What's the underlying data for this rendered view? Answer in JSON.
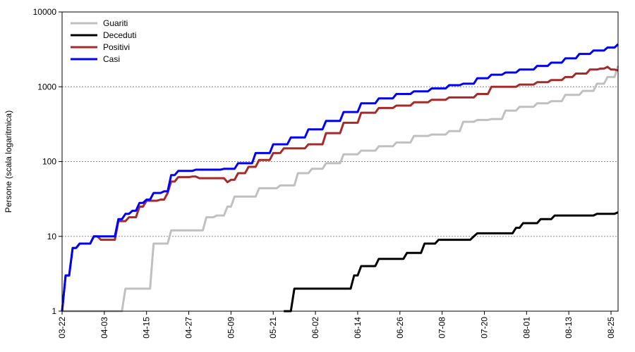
{
  "chart_data": {
    "type": "line",
    "title": "",
    "ylabel": "Persone (scala logaritmica)",
    "xlabel": "",
    "yscale": "log",
    "ylim": [
      1,
      10000
    ],
    "y_ticks": [
      "1",
      "10",
      "100",
      "1000",
      "10000"
    ],
    "x_ticks": [
      "03-22",
      "04-03",
      "04-15",
      "04-27",
      "05-09",
      "05-21",
      "06-02",
      "06-14",
      "06-26",
      "07-08",
      "07-20",
      "08-01",
      "08-13",
      "08-25"
    ],
    "x_range_days": [
      0,
      158
    ],
    "grid": "horizontal dotted",
    "legend_position": "top-left",
    "series": [
      {
        "name": "Guariti",
        "color": "#c0c0c0",
        "points": [
          [
            0,
            1
          ],
          [
            17,
            1
          ],
          [
            18,
            2
          ],
          [
            25,
            2
          ],
          [
            26,
            8
          ],
          [
            29,
            8
          ],
          [
            31,
            12
          ],
          [
            40,
            12
          ],
          [
            41,
            18
          ],
          [
            44,
            19
          ],
          [
            47,
            25
          ],
          [
            49,
            34
          ],
          [
            55,
            34
          ],
          [
            56,
            44
          ],
          [
            61,
            44
          ],
          [
            62,
            48
          ],
          [
            66,
            48
          ],
          [
            67,
            70
          ],
          [
            71,
            80
          ],
          [
            75,
            95
          ],
          [
            80,
            125
          ],
          [
            85,
            140
          ],
          [
            90,
            160
          ],
          [
            95,
            180
          ],
          [
            100,
            220
          ],
          [
            105,
            230
          ],
          [
            110,
            255
          ],
          [
            114,
            340
          ],
          [
            118,
            360
          ],
          [
            122,
            370
          ],
          [
            126,
            480
          ],
          [
            130,
            540
          ],
          [
            135,
            600
          ],
          [
            139,
            640
          ],
          [
            143,
            780
          ],
          [
            148,
            880
          ],
          [
            152,
            1100
          ],
          [
            155,
            1350
          ],
          [
            158,
            1900
          ]
        ]
      },
      {
        "name": "Deceduti",
        "color": "#000000",
        "points": [
          [
            63,
            1
          ],
          [
            65,
            1
          ],
          [
            66,
            2
          ],
          [
            82,
            2
          ],
          [
            83,
            3
          ],
          [
            84,
            3
          ],
          [
            85,
            4
          ],
          [
            89,
            4
          ],
          [
            90,
            5
          ],
          [
            97,
            5
          ],
          [
            98,
            6
          ],
          [
            102,
            6
          ],
          [
            103,
            8
          ],
          [
            106,
            8
          ],
          [
            107,
            9
          ],
          [
            116,
            9
          ],
          [
            117,
            10
          ],
          [
            118,
            11
          ],
          [
            128,
            11
          ],
          [
            129,
            13
          ],
          [
            131,
            15
          ],
          [
            135,
            15
          ],
          [
            136,
            17
          ],
          [
            140,
            19
          ],
          [
            151,
            19
          ],
          [
            152,
            20
          ],
          [
            156,
            20
          ],
          [
            158,
            21
          ]
        ]
      },
      {
        "name": "Positivi",
        "color": "#a52a2a",
        "points": [
          [
            0,
            1
          ],
          [
            1,
            3
          ],
          [
            3,
            7
          ],
          [
            5,
            8
          ],
          [
            8,
            8
          ],
          [
            9,
            10
          ],
          [
            11,
            9
          ],
          [
            15,
            9
          ],
          [
            16,
            16
          ],
          [
            19,
            18
          ],
          [
            22,
            25
          ],
          [
            24,
            30
          ],
          [
            28,
            31
          ],
          [
            30,
            38
          ],
          [
            31,
            54
          ],
          [
            33,
            62
          ],
          [
            37,
            63
          ],
          [
            39,
            60
          ],
          [
            44,
            60
          ],
          [
            47,
            53
          ],
          [
            48,
            57
          ],
          [
            50,
            70
          ],
          [
            53,
            85
          ],
          [
            56,
            105
          ],
          [
            60,
            130
          ],
          [
            63,
            150
          ],
          [
            66,
            150
          ],
          [
            70,
            170
          ],
          [
            75,
            240
          ],
          [
            80,
            330
          ],
          [
            85,
            450
          ],
          [
            90,
            520
          ],
          [
            95,
            560
          ],
          [
            100,
            620
          ],
          [
            105,
            670
          ],
          [
            110,
            720
          ],
          [
            114,
            720
          ],
          [
            118,
            800
          ],
          [
            122,
            1000
          ],
          [
            126,
            1000
          ],
          [
            130,
            1070
          ],
          [
            135,
            1150
          ],
          [
            139,
            1230
          ],
          [
            143,
            1350
          ],
          [
            146,
            1500
          ],
          [
            150,
            1700
          ],
          [
            153,
            1750
          ],
          [
            155,
            1850
          ],
          [
            156,
            1700
          ],
          [
            158,
            1650
          ]
        ]
      },
      {
        "name": "Casi",
        "color": "#0000ff",
        "points": [
          [
            0,
            1
          ],
          [
            1,
            3
          ],
          [
            3,
            7
          ],
          [
            5,
            8
          ],
          [
            8,
            8
          ],
          [
            9,
            10
          ],
          [
            15,
            10
          ],
          [
            16,
            17
          ],
          [
            18,
            20
          ],
          [
            20,
            22
          ],
          [
            22,
            28
          ],
          [
            24,
            31
          ],
          [
            26,
            38
          ],
          [
            29,
            40
          ],
          [
            31,
            66
          ],
          [
            33,
            75
          ],
          [
            37,
            75
          ],
          [
            38,
            78
          ],
          [
            46,
            80
          ],
          [
            50,
            95
          ],
          [
            55,
            130
          ],
          [
            60,
            170
          ],
          [
            65,
            210
          ],
          [
            70,
            270
          ],
          [
            75,
            350
          ],
          [
            80,
            460
          ],
          [
            85,
            600
          ],
          [
            90,
            700
          ],
          [
            95,
            800
          ],
          [
            100,
            870
          ],
          [
            105,
            950
          ],
          [
            110,
            1050
          ],
          [
            114,
            1100
          ],
          [
            118,
            1300
          ],
          [
            122,
            1450
          ],
          [
            126,
            1550
          ],
          [
            130,
            1700
          ],
          [
            135,
            1900
          ],
          [
            139,
            2100
          ],
          [
            143,
            2400
          ],
          [
            147,
            2750
          ],
          [
            151,
            3050
          ],
          [
            155,
            3350
          ],
          [
            158,
            3700
          ]
        ]
      }
    ]
  }
}
